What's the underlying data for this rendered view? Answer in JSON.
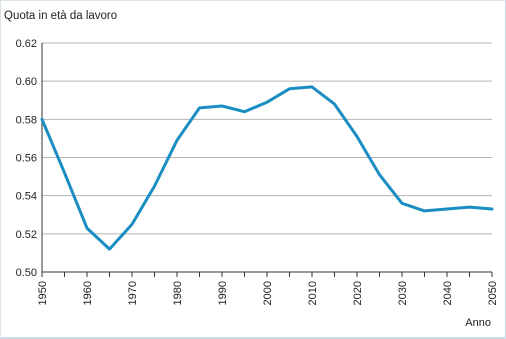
{
  "chart_data": {
    "type": "line",
    "ylabel": "Quota in età da lavoro",
    "xlabel": "Anno",
    "xlim": [
      1950,
      2050
    ],
    "ylim": [
      0.5,
      0.62
    ],
    "xticks": [
      "1950",
      "1960",
      "1970",
      "1980",
      "1990",
      "2000",
      "2010",
      "2020",
      "2030",
      "2040",
      "2050"
    ],
    "yticks": [
      "0.50",
      "0.52",
      "0.54",
      "0.56",
      "0.58",
      "0.60",
      "0.62"
    ],
    "grid": "horizontal",
    "line_color": "#1a8ec2",
    "x": [
      1950,
      1955,
      1960,
      1965,
      1970,
      1975,
      1980,
      1985,
      1990,
      1995,
      2000,
      2005,
      2010,
      2015,
      2020,
      2025,
      2030,
      2035,
      2040,
      2045,
      2050
    ],
    "values": [
      0.58,
      0.552,
      0.523,
      0.512,
      0.525,
      0.545,
      0.569,
      0.586,
      0.587,
      0.584,
      0.589,
      0.596,
      0.597,
      0.588,
      0.571,
      0.551,
      0.536,
      0.532,
      0.533,
      0.534,
      0.533
    ]
  }
}
